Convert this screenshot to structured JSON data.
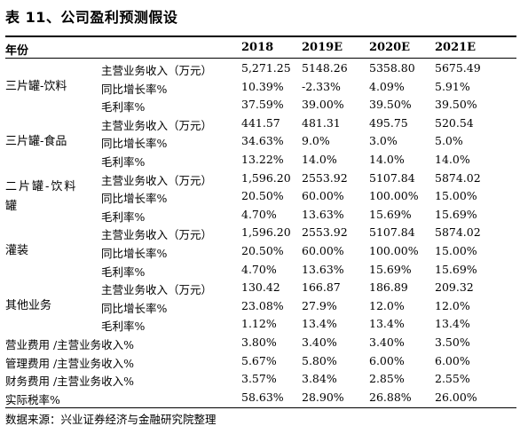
{
  "title": "表 11、公司盈利预测假设",
  "header": {
    "label": "年份",
    "cols": [
      "2018",
      "2019E",
      "2020E",
      "2021E"
    ]
  },
  "groups": [
    {
      "name": "三片罐-饮料",
      "rows": [
        {
          "metric": "主营业务收入（万元）",
          "values": [
            "5,271.25",
            "5148.26",
            "5358.80",
            "5675.49"
          ]
        },
        {
          "metric": "同比增长率%",
          "values": [
            "10.39%",
            "-2.33%",
            "4.09%",
            "5.91%"
          ]
        },
        {
          "metric": "毛利率%",
          "values": [
            "37.59%",
            "39.00%",
            "39.50%",
            "39.50%"
          ]
        }
      ]
    },
    {
      "name": "三片罐-食品",
      "rows": [
        {
          "metric": "主营业务收入（万元）",
          "values": [
            "441.57",
            "481.31",
            "495.75",
            "520.54"
          ]
        },
        {
          "metric": "同比增长率%",
          "values": [
            "34.63%",
            "9.0%",
            "3.0%",
            "5.0%"
          ]
        },
        {
          "metric": "毛利率%",
          "values": [
            "13.22%",
            "14.0%",
            "14.0%",
            "14.0%"
          ]
        }
      ]
    },
    {
      "name": "二片罐-饮料罐",
      "rows": [
        {
          "metric": "主营业务收入（万元）",
          "values": [
            "1,596.20",
            "2553.92",
            "5107.84",
            "5874.02"
          ]
        },
        {
          "metric": "同比增长率%",
          "values": [
            "20.50%",
            "60.00%",
            "100.00%",
            "15.00%"
          ]
        },
        {
          "metric": "毛利率%",
          "values": [
            "4.70%",
            "13.63%",
            "15.69%",
            "15.69%"
          ]
        }
      ]
    },
    {
      "name": "灌装",
      "rows": [
        {
          "metric": "主营业务收入（万元）",
          "values": [
            "1,596.20",
            "2553.92",
            "5107.84",
            "5874.02"
          ]
        },
        {
          "metric": "同比增长率%",
          "values": [
            "20.50%",
            "60.00%",
            "100.00%",
            "15.00%"
          ]
        },
        {
          "metric": "毛利率%",
          "values": [
            "4.70%",
            "13.63%",
            "15.69%",
            "15.69%"
          ]
        }
      ]
    },
    {
      "name": "其他业务",
      "rows": [
        {
          "metric": "主营业务收入（万元）",
          "values": [
            "130.42",
            "166.87",
            "186.89",
            "209.32"
          ]
        },
        {
          "metric": "同比增长率%",
          "values": [
            "23.08%",
            "27.9%",
            "12.0%",
            "12.0%"
          ]
        },
        {
          "metric": "毛利率%",
          "values": [
            "1.12%",
            "13.4%",
            "13.4%",
            "13.4%"
          ]
        }
      ]
    }
  ],
  "summary": [
    {
      "label": "营业费用 /主营业务收入%",
      "values": [
        "3.80%",
        "3.40%",
        "3.40%",
        "3.50%"
      ]
    },
    {
      "label": "管理费用 /主营业务收入%",
      "values": [
        "5.67%",
        "5.80%",
        "6.00%",
        "6.00%"
      ]
    },
    {
      "label": "财务费用 /主营业务收入%",
      "values": [
        "3.57%",
        "3.84%",
        "2.85%",
        "2.55%"
      ]
    },
    {
      "label": "实际税率%",
      "values": [
        "58.63%",
        "28.90%",
        "26.88%",
        "26.00%"
      ]
    }
  ],
  "footer": "数据来源：兴业证券经济与金融研究院整理"
}
